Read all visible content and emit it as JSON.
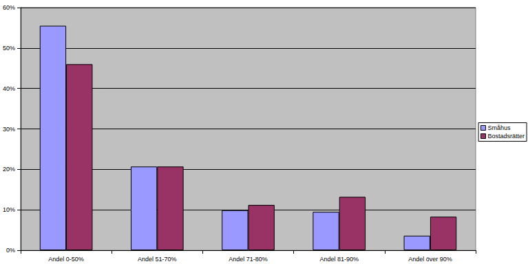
{
  "chart_data": {
    "type": "bar",
    "categories": [
      "Andel 0-50%",
      "Andel 51-70%",
      "Andel 71-80%",
      "Andel 81-90%",
      "Andel över 90%"
    ],
    "series": [
      {
        "name": "Småhus",
        "color": "#9999ff",
        "values": [
          55.5,
          20.7,
          9.9,
          9.5,
          3.6
        ]
      },
      {
        "name": "Bostadsrätter",
        "color": "#993366",
        "values": [
          46.0,
          20.7,
          11.2,
          13.2,
          8.3
        ]
      }
    ],
    "ylim": [
      0,
      60
    ],
    "yticks": [
      {
        "value": 0,
        "label": "0%"
      },
      {
        "value": 10,
        "label": "10%"
      },
      {
        "value": 20,
        "label": "20%"
      },
      {
        "value": 30,
        "label": "30%"
      },
      {
        "value": 40,
        "label": "40%"
      },
      {
        "value": 50,
        "label": "50%"
      },
      {
        "value": 60,
        "label": "60%"
      }
    ],
    "grid": true,
    "legend": "right"
  }
}
